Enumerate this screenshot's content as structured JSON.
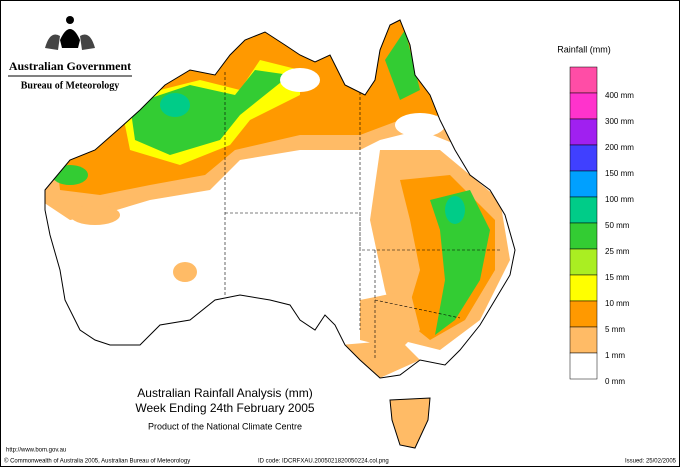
{
  "header": {
    "government": "Australian Government",
    "bureau": "Bureau of Meteorology"
  },
  "legend": {
    "title": "Rainfall (mm)",
    "items": [
      {
        "color": "#ff4da6",
        "label": "400 mm"
      },
      {
        "color": "#ff33cc",
        "label": "300 mm"
      },
      {
        "color": "#a020f0",
        "label": "200 mm"
      },
      {
        "color": "#4040ff",
        "label": "150 mm"
      },
      {
        "color": "#00a0ff",
        "label": "100 mm"
      },
      {
        "color": "#00cc88",
        "label": "50 mm"
      },
      {
        "color": "#33cc33",
        "label": "25 mm"
      },
      {
        "color": "#aaee22",
        "label": "15 mm"
      },
      {
        "color": "#ffff00",
        "label": "10 mm"
      },
      {
        "color": "#ff9900",
        "label": "5 mm"
      },
      {
        "color": "#ffbb66",
        "label": "1 mm"
      },
      {
        "color": "#ffffff",
        "label": "0 mm"
      }
    ]
  },
  "caption": {
    "title": "Australian Rainfall Analysis (mm)",
    "period": "Week Ending 24th February 2005",
    "product": "Product of the National Climate Centre"
  },
  "footer": {
    "url": "http://www.bom.gov.au",
    "copyright": "© Commonwealth of Australia 2005, Australian Bureau of Meteorology",
    "id_code": "ID code: IDCRFXAU.2005021820050224.col.png",
    "issued": "Issued: 25/02/2005"
  }
}
